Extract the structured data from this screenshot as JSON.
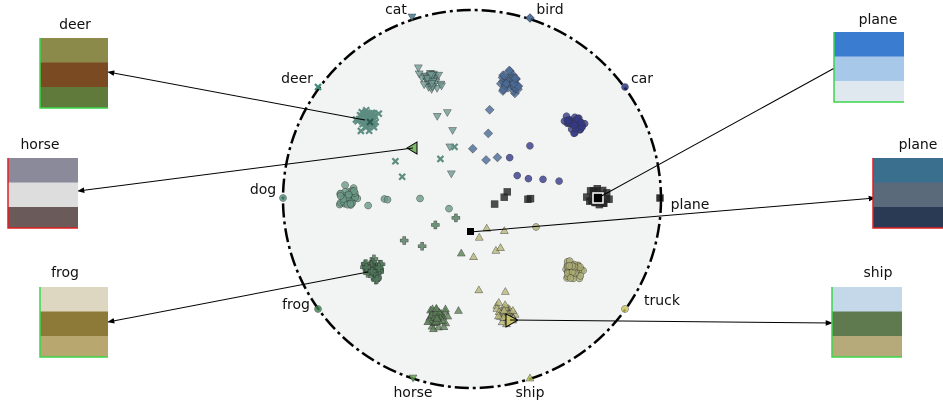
{
  "anchors": [
    {
      "label": "cat"
    },
    {
      "label": "bird"
    },
    {
      "label": "car"
    },
    {
      "label": "deer"
    },
    {
      "label": "dog"
    },
    {
      "label": "plane"
    },
    {
      "label": "frog"
    },
    {
      "label": "truck"
    },
    {
      "label": "horse"
    },
    {
      "label": "ship"
    }
  ],
  "thumbnails": [
    {
      "label": "deer"
    },
    {
      "label": "horse"
    },
    {
      "label": "frog"
    },
    {
      "label": "plane"
    },
    {
      "label": "plane"
    },
    {
      "label": "ship"
    }
  ]
}
